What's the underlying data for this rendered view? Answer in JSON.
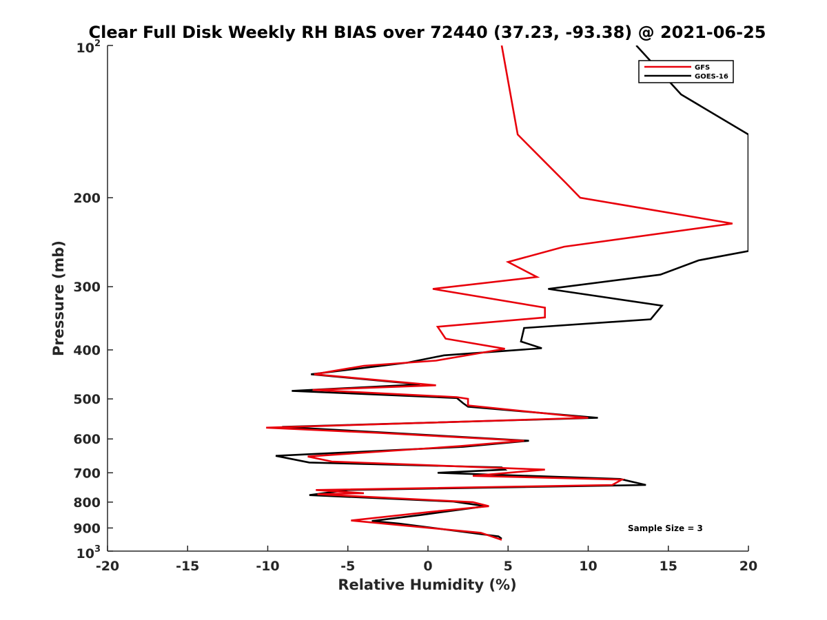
{
  "chart_data": {
    "type": "line",
    "title": "Clear Full Disk Weekly RH BIAS over 72440 (37.23, -93.38) @ 2021-06-25",
    "xlabel": "Relative Humidity (%)",
    "ylabel": "Pressure (mb)",
    "xlim": [
      -20,
      20
    ],
    "ylim": [
      100,
      1000
    ],
    "y_scale": "log",
    "y_reversed": true,
    "grid": false,
    "legend_position": "top-right",
    "x_ticks": [
      "-20",
      "-15",
      "-10",
      "-5",
      "0",
      "5",
      "10",
      "15",
      "20"
    ],
    "y_ticks": [
      {
        "value": 100,
        "base": "10",
        "exp": "2"
      },
      {
        "value": 200,
        "label": "200"
      },
      {
        "value": 300,
        "label": "300"
      },
      {
        "value": 400,
        "label": "400"
      },
      {
        "value": 500,
        "label": "500"
      },
      {
        "value": 600,
        "label": "600"
      },
      {
        "value": 700,
        "label": "700"
      },
      {
        "value": 800,
        "label": "800"
      },
      {
        "value": 900,
        "label": "900"
      },
      {
        "value": 1000,
        "base": "10",
        "exp": "3"
      }
    ],
    "series": [
      {
        "name": "GFS",
        "color": "#e8000b",
        "points": [
          [
            4.6,
            100
          ],
          [
            5.6,
            150
          ],
          [
            7.3,
            170
          ],
          [
            8.6,
            187
          ],
          [
            9.5,
            200
          ],
          [
            19.0,
            225
          ],
          [
            8.5,
            250
          ],
          [
            5.0,
            268
          ],
          [
            6.8,
            287
          ],
          [
            0.3,
            303
          ],
          [
            7.3,
            330
          ],
          [
            7.3,
            345
          ],
          [
            0.6,
            360
          ],
          [
            1.1,
            380
          ],
          [
            4.8,
            398
          ],
          [
            0.5,
            420
          ],
          [
            -4.0,
            430
          ],
          [
            -7.1,
            447
          ],
          [
            0.5,
            470
          ],
          [
            -7.2,
            480
          ],
          [
            1.8,
            496
          ],
          [
            2.5,
            500
          ],
          [
            2.5,
            515
          ],
          [
            10.0,
            545
          ],
          [
            -10.1,
            570
          ],
          [
            -3.0,
            584
          ],
          [
            6.0,
            605
          ],
          [
            2.0,
            620
          ],
          [
            -7.5,
            650
          ],
          [
            -6.0,
            665
          ],
          [
            7.3,
            690
          ],
          [
            2.8,
            710
          ],
          [
            12.1,
            722
          ],
          [
            11.5,
            740
          ],
          [
            -7.0,
            757
          ],
          [
            -4.0,
            768
          ],
          [
            -6.9,
            772
          ],
          [
            2.8,
            800
          ],
          [
            3.8,
            815
          ],
          [
            0.2,
            836
          ],
          [
            -4.8,
            870
          ],
          [
            3.3,
            920
          ],
          [
            4.6,
            950
          ]
        ]
      },
      {
        "name": "GOES-16",
        "color": "#000000",
        "points": [
          [
            13.0,
            100
          ],
          [
            15.8,
            125
          ],
          [
            20.0,
            150
          ],
          [
            20.0,
            255
          ],
          [
            16.9,
            266
          ],
          [
            14.5,
            284
          ],
          [
            7.5,
            303
          ],
          [
            14.6,
            327
          ],
          [
            13.9,
            348
          ],
          [
            6.0,
            362
          ],
          [
            5.8,
            385
          ],
          [
            7.1,
            397
          ],
          [
            1.0,
            410
          ],
          [
            -1.3,
            424
          ],
          [
            -7.3,
            447
          ],
          [
            -0.5,
            468
          ],
          [
            -8.5,
            482
          ],
          [
            1.8,
            498
          ],
          [
            2.2,
            510
          ],
          [
            2.5,
            518
          ],
          [
            10.6,
            545
          ],
          [
            -9.1,
            568
          ],
          [
            -3.0,
            582
          ],
          [
            6.3,
            605
          ],
          [
            2.2,
            622
          ],
          [
            -9.5,
            648
          ],
          [
            -7.4,
            668
          ],
          [
            4.6,
            683
          ],
          [
            4.8,
            690
          ],
          [
            0.6,
            700
          ],
          [
            12.0,
            720
          ],
          [
            13.6,
            740
          ],
          [
            -5.0,
            757
          ],
          [
            -7.4,
            775
          ],
          [
            1.6,
            798
          ],
          [
            3.6,
            815
          ],
          [
            -0.4,
            848
          ],
          [
            -3.5,
            872
          ],
          [
            -1.8,
            882
          ],
          [
            4.4,
            935
          ],
          [
            4.6,
            945
          ]
        ]
      }
    ],
    "annotations": {
      "sample_size": "Sample Size = 3"
    }
  }
}
